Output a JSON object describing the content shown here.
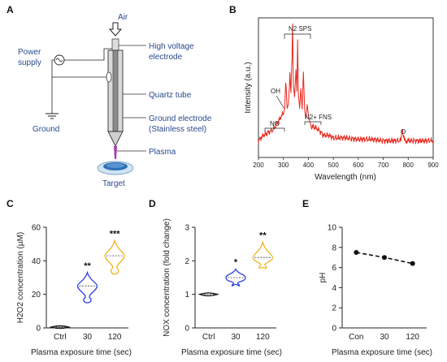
{
  "panels": {
    "A": {
      "letter": "A",
      "labels": {
        "air": "Air",
        "hv1": "High voltage",
        "hv2": "electrode",
        "power1": "Power",
        "power2": "supply",
        "ground": "Ground",
        "quartz": "Quartz tube",
        "ge1": "Ground electrode",
        "ge2": "(Stainless steel)",
        "plasma": "Plasma",
        "target": "Target"
      }
    },
    "B": {
      "letter": "B",
      "annotations": {
        "n2sps": "N2 SPS",
        "oh": "OH",
        "no": "NO",
        "n2fns": "N2+ FNS",
        "o": "O"
      }
    },
    "C": {
      "letter": "C"
    },
    "D": {
      "letter": "D"
    },
    "E": {
      "letter": "E"
    }
  },
  "chart_data": [
    {
      "panel": "B",
      "type": "line",
      "xlabel": "Wavelength (nm)",
      "ylabel": "Intensity (a.u.)",
      "xlim": [
        200,
        900
      ],
      "xticks": [
        200,
        300,
        400,
        500,
        600,
        700,
        800,
        900
      ],
      "color": "#e8281e",
      "x": [
        200,
        220,
        240,
        260,
        280,
        300,
        305,
        309,
        315,
        320,
        326,
        330,
        334,
        337,
        340,
        345,
        350,
        354,
        357,
        360,
        365,
        370,
        375,
        380,
        385,
        390,
        395,
        400,
        405,
        410,
        420,
        440,
        460,
        480,
        500,
        550,
        600,
        650,
        700,
        750,
        770,
        777,
        785,
        800,
        850,
        900
      ],
      "y": [
        0.12,
        0.16,
        0.18,
        0.2,
        0.26,
        0.32,
        0.36,
        0.55,
        0.35,
        0.38,
        0.6,
        0.45,
        0.72,
        0.95,
        0.5,
        0.42,
        0.62,
        0.48,
        0.83,
        0.45,
        0.35,
        0.5,
        0.35,
        0.62,
        0.35,
        0.28,
        0.38,
        0.3,
        0.25,
        0.22,
        0.22,
        0.2,
        0.16,
        0.16,
        0.14,
        0.14,
        0.13,
        0.13,
        0.12,
        0.12,
        0.12,
        0.2,
        0.12,
        0.12,
        0.12,
        0.12
      ]
    },
    {
      "panel": "C",
      "type": "violin",
      "xlabel": "Plasma exposure time (sec)",
      "ylabel": "H2O2 concentration (µM)",
      "ylim": [
        0,
        60
      ],
      "yticks": [
        0,
        20,
        40,
        60
      ],
      "categories": [
        "Ctrl",
        "30",
        "120"
      ],
      "colors": [
        "#111111",
        "#2b3fe6",
        "#f2b41f"
      ],
      "medians": [
        0.5,
        25,
        43
      ],
      "mins": [
        0,
        15,
        32
      ],
      "maxs": [
        1,
        33,
        52
      ],
      "significance": [
        "",
        "**",
        "***"
      ]
    },
    {
      "panel": "D",
      "type": "violin",
      "xlabel": "Plasma exposure time (sec)",
      "ylabel": "NOX concentration (fold change)",
      "ylim": [
        0,
        3
      ],
      "yticks": [
        0,
        1,
        2,
        3
      ],
      "categories": [
        "Ctrl",
        "30",
        "120"
      ],
      "colors": [
        "#111111",
        "#2b3fe6",
        "#f2b41f"
      ],
      "medians": [
        1.0,
        1.5,
        2.1
      ],
      "mins": [
        0.96,
        1.3,
        1.8
      ],
      "maxs": [
        1.04,
        1.75,
        2.55
      ],
      "significance": [
        "",
        "*",
        "**"
      ]
    },
    {
      "panel": "E",
      "type": "line",
      "xlabel": "Plasma exposure time (sec)",
      "ylabel": "pH",
      "ylim": [
        0,
        10
      ],
      "yticks": [
        0,
        2,
        4,
        6,
        8,
        10
      ],
      "categories": [
        "Con",
        "30",
        "120"
      ],
      "values": [
        7.5,
        7.0,
        6.4
      ]
    }
  ]
}
